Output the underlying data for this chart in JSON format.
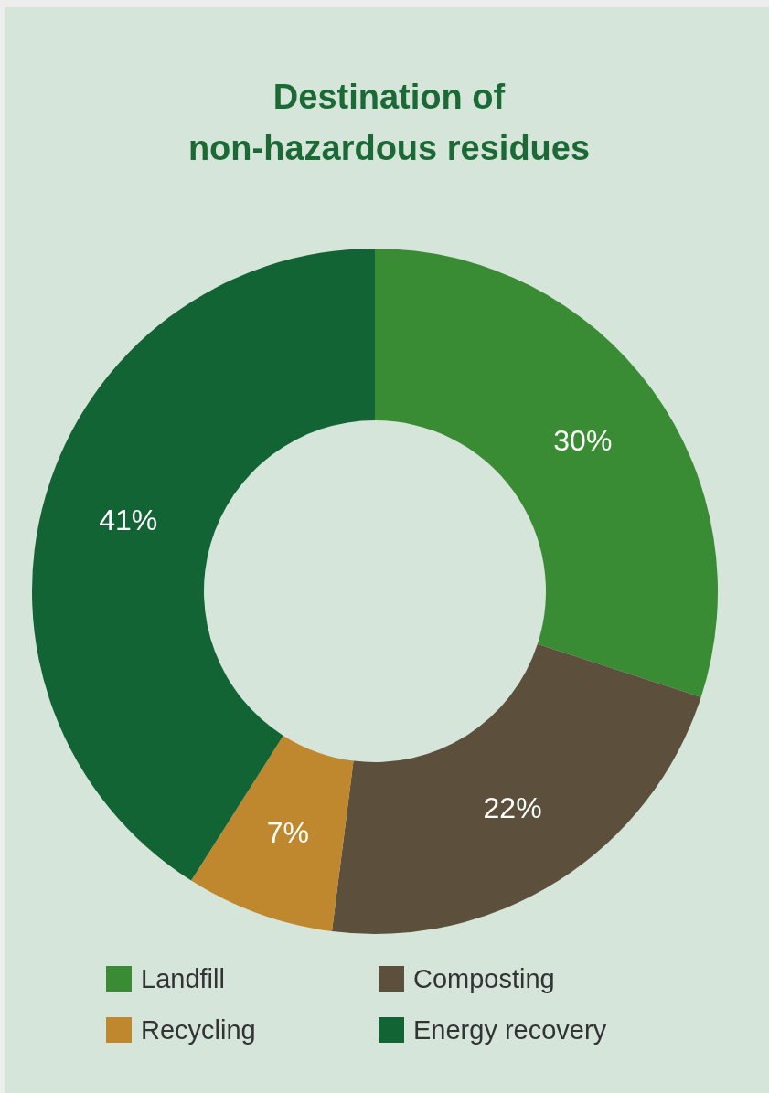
{
  "chart_data": {
    "type": "donut",
    "title": "Destination of\nnon-hazardous residues",
    "categories": [
      "Landfill",
      "Composting",
      "Recycling",
      "Energy recovery"
    ],
    "values": [
      30,
      22,
      7,
      41
    ],
    "colors": [
      "#3a8c34",
      "#5c4f3b",
      "#c0882e",
      "#126434"
    ],
    "value_labels": [
      "30%",
      "22%",
      "7%",
      "41%"
    ],
    "legend": "bottom"
  }
}
